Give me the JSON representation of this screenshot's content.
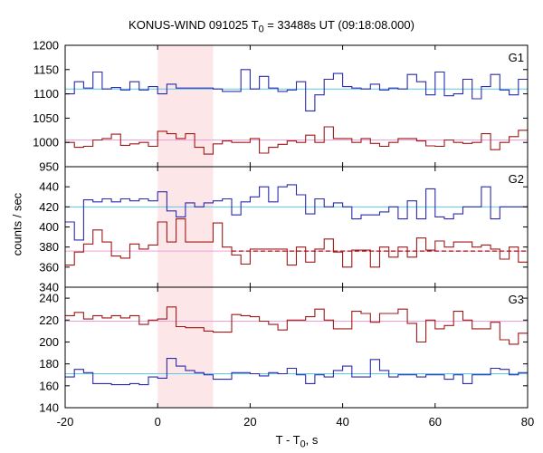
{
  "chart_data": {
    "type": "line",
    "title_prefix": "KONUS-WIND 091025 T",
    "title_sub": "0",
    "title_suffix": " = 33488s UT (09:18:08.000)",
    "xlabel_prefix": "T - T",
    "xlabel_sub": "0",
    "xlabel_suffix": ", s",
    "ylabel": "counts / sec",
    "xlim": [
      -20,
      80
    ],
    "xticks": [
      "-20",
      "0",
      "20",
      "40",
      "60",
      "80"
    ],
    "shaded_interval": [
      0,
      12
    ],
    "shade_color": "#fde6e8",
    "bin_edges": [
      -20,
      -18,
      -16,
      -14,
      -12,
      -10,
      -8,
      -6,
      -4,
      -2,
      0,
      2,
      4,
      6,
      8,
      10,
      12,
      14,
      16,
      18,
      20,
      22,
      24,
      26,
      28,
      30,
      32,
      34,
      36,
      38,
      40,
      42,
      44,
      46,
      48,
      50,
      52,
      54,
      56,
      58,
      60,
      62,
      64,
      66,
      68,
      70,
      72,
      74,
      76,
      78,
      80
    ],
    "panels": [
      {
        "label": "G1",
        "ylim": [
          950,
          1200
        ],
        "yticks": [
          "950",
          "1000",
          "1050",
          "1100",
          "1150",
          "1200"
        ],
        "series": [
          {
            "color": "#2b2bb0",
            "bg_level": 1110,
            "bg_color": "#5bc8e8",
            "values": [
              1100,
              1125,
              1112,
              1145,
              1110,
              1113,
              1108,
              1125,
              1108,
              1115,
              1100,
              1120,
              1112,
              1112,
              1112,
              1112,
              1110,
              1105,
              1105,
              1150,
              1110,
              1136,
              1112,
              1105,
              1108,
              1125,
              1065,
              1098,
              1130,
              1142,
              1115,
              1112,
              1110,
              1120,
              1108,
              1112,
              1110,
              1140,
              1125,
              1098,
              1145,
              1096,
              1100,
              1130,
              1090,
              1115,
              1140,
              1108,
              1098,
              1130
            ]
          },
          {
            "color": "#a01818",
            "bg_level": 1005,
            "bg_color": "#f0a0d8",
            "values": [
              1000,
              990,
              992,
              1005,
              1008,
              1017,
              994,
              997,
              1000,
              992,
              1023,
              1018,
              1008,
              1018,
              990,
              976,
              997,
              1003,
              1000,
              1000,
              1008,
              978,
              990,
              996,
              1003,
              1000,
              1015,
              1000,
              1032,
              1008,
              1008,
              1000,
              1008,
              998,
              992,
              1000,
              1008,
              1008,
              1003,
              993,
              992,
              1005,
              1000,
              998,
              1000,
              1018,
              985,
              1000,
              1012,
              1025
            ]
          }
        ]
      },
      {
        "label": "G2",
        "ylim": [
          340,
          460
        ],
        "yticks": [
          "340",
          "360",
          "380",
          "400",
          "420",
          "440"
        ],
        "series": [
          {
            "color": "#2b2bb0",
            "bg_level": 420,
            "bg_color": "#5bc8e8",
            "values": [
              405,
              387,
              427,
              425,
              428,
              425,
              428,
              426,
              428,
              426,
              435,
              416,
              410,
              424,
              420,
              424,
              426,
              428,
              412,
              425,
              430,
              440,
              425,
              440,
              442,
              432,
              413,
              428,
              420,
              424,
              420,
              408,
              412,
              412,
              415,
              420,
              408,
              426,
              408,
              438,
              410,
              408,
              413,
              420,
              420,
              440,
              408,
              420,
              420,
              420
            ]
          },
          {
            "color": "#a01818",
            "bg_level": 376,
            "bg_color": "#f0a0d8",
            "dashed": true,
            "dashed_range": [
              16,
              80
            ],
            "values": [
              362,
              375,
              383,
              397,
              385,
              371,
              369,
              383,
              378,
              382,
              405,
              385,
              408,
              385,
              385,
              385,
              404,
              380,
              372,
              363,
              378,
              378,
              378,
              378,
              362,
              380,
              365,
              378,
              388,
              375,
              360,
              377,
              377,
              360,
              380,
              370,
              380,
              370,
              389,
              377,
              386,
              380,
              385,
              385,
              380,
              382,
              378,
              368,
              380,
              365
            ]
          }
        ]
      },
      {
        "label": "G3",
        "ylim": [
          140,
          250
        ],
        "yticks": [
          "140",
          "160",
          "180",
          "200",
          "220",
          "240"
        ],
        "series": [
          {
            "color": "#a01818",
            "bg_level": 219,
            "bg_color": "#f0a0d8",
            "values": [
              224,
              227,
              221,
              224,
              222,
              224,
              222,
              224,
              216,
              220,
              221,
              232,
              214,
              213,
              213,
              210,
              209,
              209,
              225,
              224,
              223,
              219,
              216,
              211,
              220,
              220,
              223,
              230,
              220,
              212,
              212,
              228,
              226,
              218,
              226,
              226,
              230,
              217,
              200,
              220,
              212,
              215,
              228,
              220,
              212,
              212,
              218,
              202,
              198,
              208
            ]
          },
          {
            "color": "#2b2bb0",
            "bg_level": 171,
            "bg_color": "#5bc8e8",
            "values": [
              168,
              175,
              172,
              162,
              162,
              161,
              161,
              162,
              161,
              168,
              167,
              185,
              178,
              174,
              172,
              170,
              166,
              166,
              172,
              172,
              171,
              169,
              172,
              171,
              176,
              170,
              162,
              170,
              168,
              174,
              178,
              168,
              168,
              184,
              174,
              168,
              170,
              170,
              168,
              170,
              170,
              166,
              170,
              162,
              170,
              170,
              176,
              175,
              170,
              172
            ]
          }
        ]
      }
    ]
  }
}
